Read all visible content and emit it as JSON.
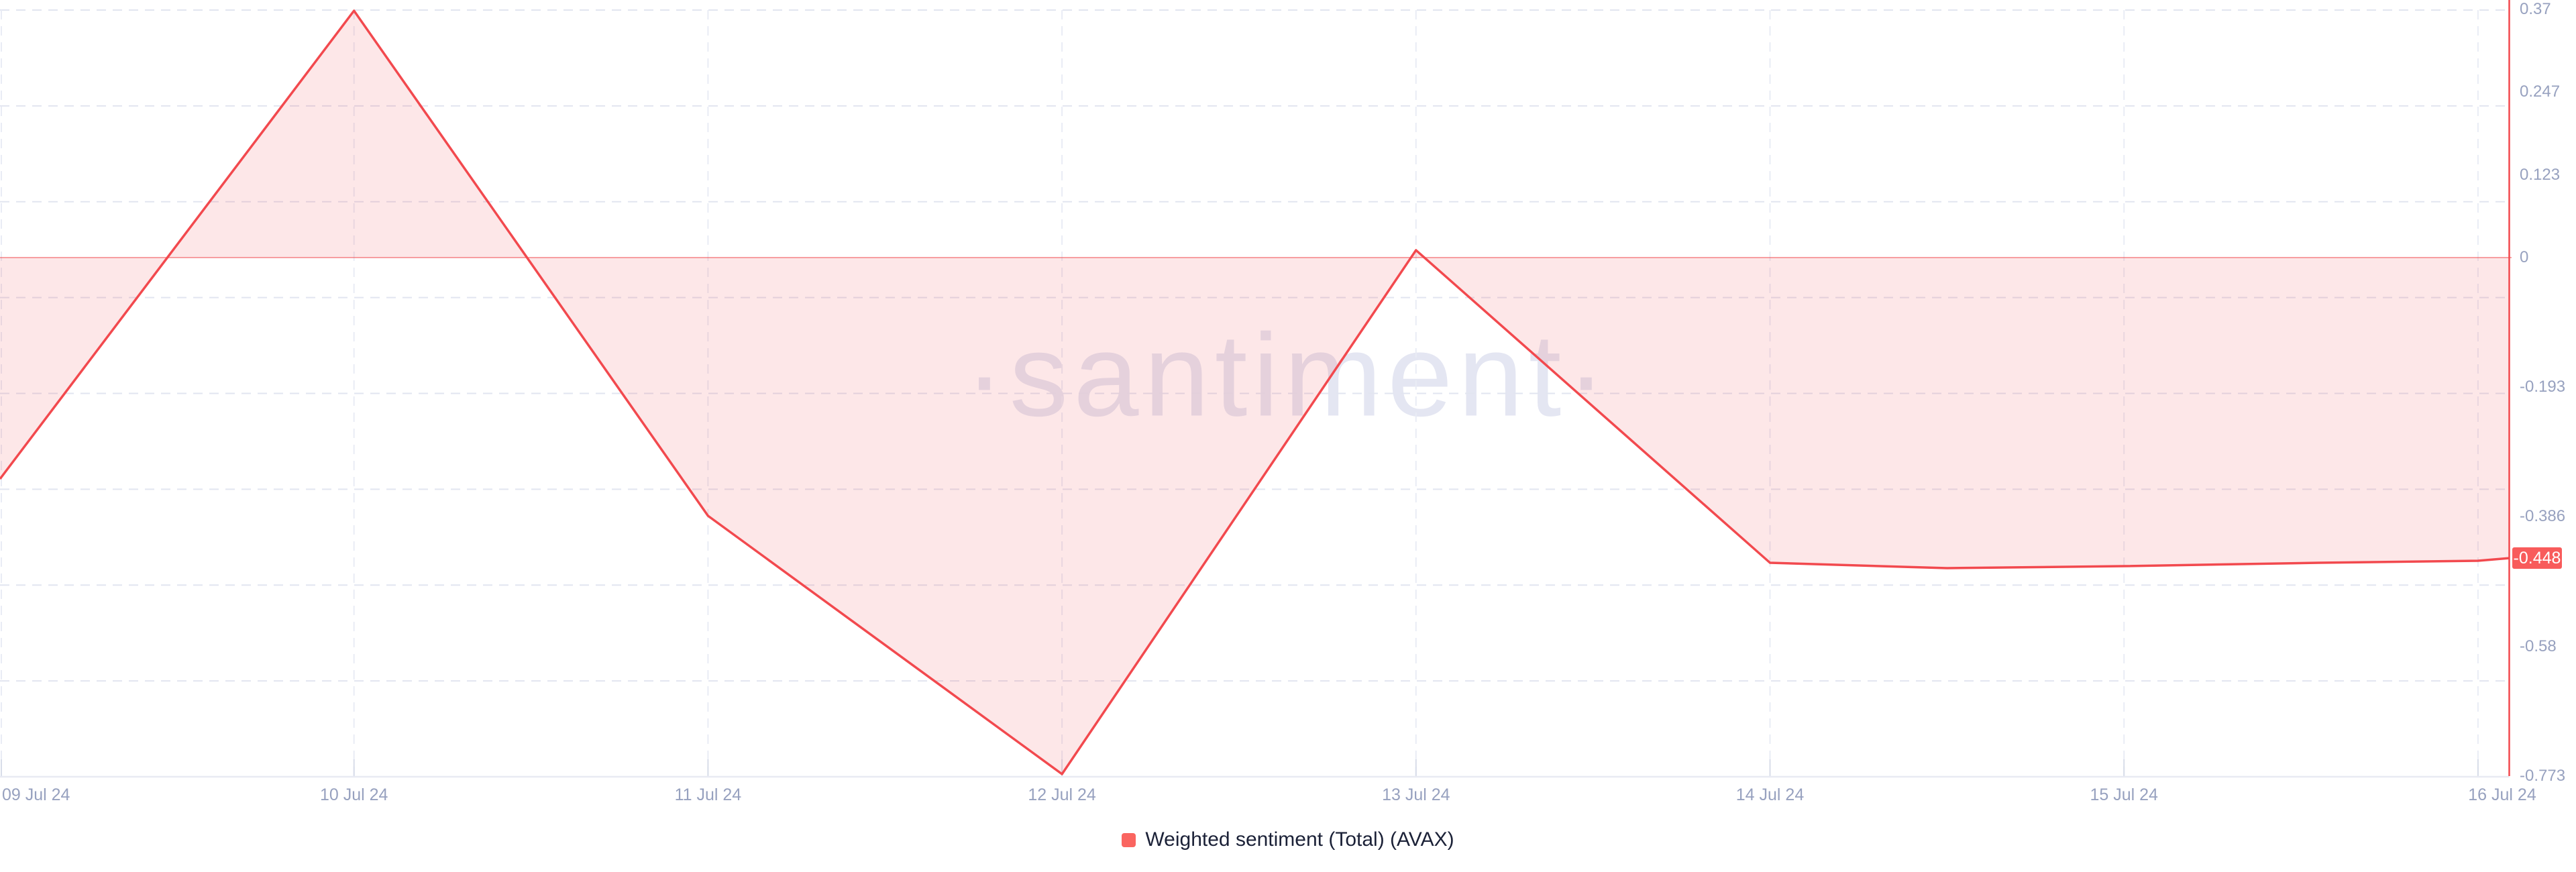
{
  "watermark": "·santiment·",
  "legend": {
    "label": "Weighted sentiment (Total) (AVAX)",
    "marker_color": "#fa6560"
  },
  "colors": {
    "background": "#ffffff",
    "line": "#f2494e",
    "fill": "#f2494e",
    "fill_opacity": 0.13,
    "zero_line": "#f2494e",
    "zero_line_opacity": 0.5,
    "right_axis_line": "#f2494e",
    "badge_bg": "#f85b5b",
    "badge_text": "#ffffff",
    "grid_horizontal": "#e2e5f0",
    "grid_vertical": "#e9ecf5",
    "axis_bottom": "#e8eaf3",
    "tick": "#d8dde9",
    "axis_label": "#97a1bf",
    "legend_text": "#1b2137",
    "watermark_tint": "#e4e6f2"
  },
  "chart_data": {
    "type": "area",
    "title": "",
    "xlabel": "",
    "ylabel": "",
    "x_categories": [
      "09 Jul 24",
      "10 Jul 24",
      "11 Jul 24",
      "12 Jul 24",
      "13 Jul 24",
      "14 Jul 24",
      "15 Jul 24",
      "16 Jul 24"
    ],
    "y_tick_labels": [
      "0.37",
      "0.247",
      "0.123",
      "0",
      "-0.193",
      "-0.386",
      "-0.58",
      "-0.773"
    ],
    "y_tick_values": [
      0.37,
      0.247,
      0.123,
      0,
      -0.193,
      -0.386,
      -0.58,
      -0.773
    ],
    "ylim": [
      -0.773,
      0.37
    ],
    "baseline": 0,
    "grid": "dashed",
    "legend_position": "bottom-center",
    "current_value": -0.448,
    "current_value_label": "-0.448",
    "series": [
      {
        "name": "Weighted sentiment (Total) (AVAX)",
        "color": "#f2494e",
        "points": [
          [
            0,
            -0.33
          ],
          [
            1,
            0.368
          ],
          [
            2,
            -0.385
          ],
          [
            3,
            -0.77
          ],
          [
            4,
            0.011
          ],
          [
            5,
            -0.455
          ],
          [
            5.5,
            -0.463
          ],
          [
            6,
            -0.46
          ],
          [
            6.55,
            -0.455
          ],
          [
            7,
            -0.452
          ],
          [
            7.09,
            -0.448
          ]
        ],
        "daily_values": {
          "09 Jul 24": -0.33,
          "10 Jul 24": 0.37,
          "11 Jul 24": -0.385,
          "12 Jul 24": -0.77,
          "13 Jul 24": 0.01,
          "14 Jul 24": -0.455,
          "15 Jul 24": -0.46,
          "16 Jul 24": -0.448
        }
      }
    ]
  }
}
